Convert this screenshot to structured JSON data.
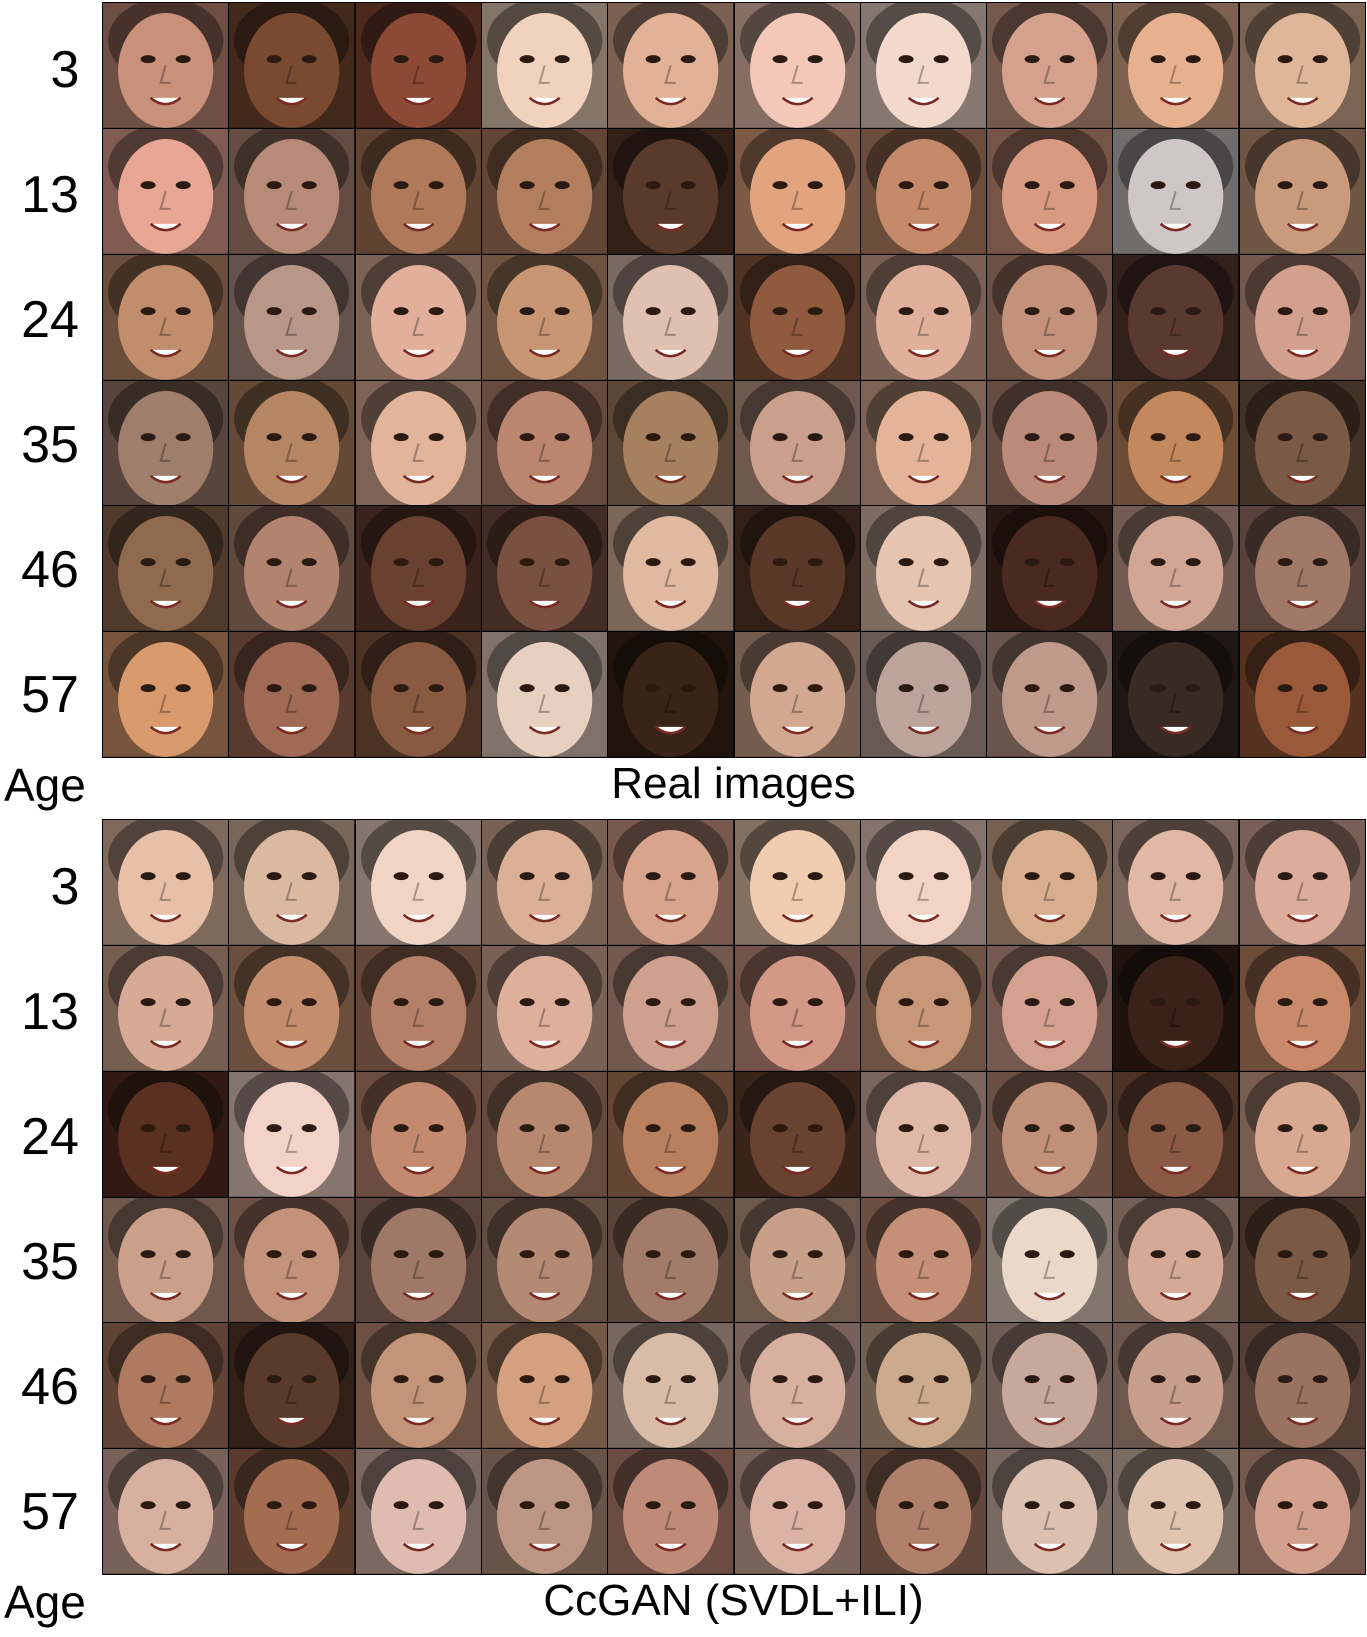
{
  "panels": [
    {
      "caption": "Real images",
      "age_label": "Age",
      "ages": [
        "3",
        "13",
        "24",
        "35",
        "46",
        "57"
      ],
      "faces": [
        [
          "#c9907a",
          "#7a4a30",
          "#8c4a35",
          "#f1d2bd",
          "#e2b196",
          "#f3c8b8",
          "#f3d8cc",
          "#d5a18c",
          "#e7b08f",
          "#e0b698"
        ],
        [
          "#e8a694",
          "#b88a78",
          "#b07a5a",
          "#b27e5e",
          "#5a3a2a",
          "#e2a47e",
          "#c48a6a",
          "#d89a80",
          "#cfc7c7",
          "#c99b7c"
        ],
        [
          "#c28d6c",
          "#b89688",
          "#e2b09a",
          "#c99674",
          "#e0c0b0",
          "#8f5a3e",
          "#e0b09a",
          "#c4927a",
          "#5a3a30",
          "#d2a08c"
        ],
        [
          "#a07e6c",
          "#b58564",
          "#e2b49a",
          "#bb8670",
          "#a78060",
          "#caa08c",
          "#e5b498",
          "#bb8a78",
          "#c4885e",
          "#7a5a45"
        ],
        [
          "#8f6a4e",
          "#b28470",
          "#6a4030",
          "#7a5040",
          "#e0b9a0",
          "#5a3828",
          "#e5c4b0",
          "#4a2a20",
          "#d2a694",
          "#a07868"
        ],
        [
          "#d99a6e",
          "#a06a55",
          "#8a5a40",
          "#e8d0c0",
          "#3a2418",
          "#d2a890",
          "#bca49a",
          "#bf9a8a",
          "#3a2a24",
          "#9a5a3a"
        ]
      ]
    },
    {
      "caption": "CcGAN (SVDL+ILI)",
      "age_label": "Age",
      "ages": [
        "3",
        "13",
        "24",
        "35",
        "46",
        "57"
      ],
      "faces": [
        [
          "#e8c0a8",
          "#dbb9a0",
          "#f1d5c4",
          "#dcb096",
          "#d8a48c",
          "#f0ccb0",
          "#f3d3c4",
          "#d8ae8e",
          "#e0b8a4",
          "#dcad9a"
        ],
        [
          "#d6aa94",
          "#c48e6e",
          "#b58068",
          "#deb09c",
          "#cfa08e",
          "#d39886",
          "#c89678",
          "#d4a090",
          "#3a2218",
          "#c88a6a"
        ],
        [
          "#5a3020",
          "#f3d3c8",
          "#c48a70",
          "#b8886e",
          "#b8805e",
          "#6a4230",
          "#e0b8a8",
          "#c09078",
          "#8a5a44",
          "#d8a890"
        ],
        [
          "#cba08a",
          "#c4927a",
          "#a07868",
          "#b48a74",
          "#a27c68",
          "#c8a08a",
          "#c69078",
          "#ead8c8",
          "#d4aa96",
          "#7a5a44"
        ],
        [
          "#b07a60",
          "#5a3a2a",
          "#c49478",
          "#d4a080",
          "#d8bca8",
          "#d8b0a0",
          "#ccaa8e",
          "#c8a89a",
          "#c89e8c",
          "#9a7260"
        ],
        [
          "#d8b0a0",
          "#a46c50",
          "#e0bcb0",
          "#bc9682",
          "#c08a78",
          "#dcb2a4",
          "#b0806a",
          "#dcc0b0",
          "#e0c4b0",
          "#d4a08e"
        ]
      ]
    }
  ]
}
